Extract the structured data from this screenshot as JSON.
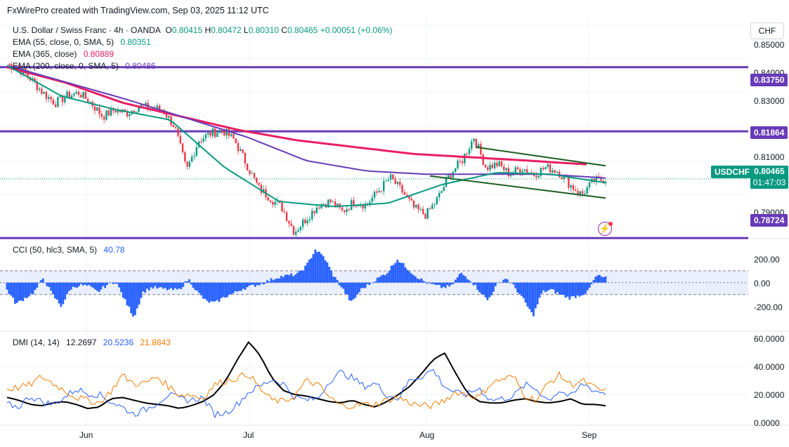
{
  "credit": "FxWirePro created with TradingView.com, Sep 03, 2025 11:12 UTC",
  "symbol_line": {
    "name": "U.S. Dollar / Swiss Franc · 4h · OANDA",
    "o_label": "O",
    "o": "0.80415",
    "h_label": "H",
    "h": "0.80472",
    "l_label": "L",
    "l": "0.80310",
    "c_label": "C",
    "c": "0.80465",
    "change": "+0.00051 (+0.06%)"
  },
  "indicators": {
    "ema55_label": "EMA (55, close, 0, SMA, 5)",
    "ema55_value": "0.80351",
    "ema365_label": "EMA (365, close)",
    "ema365_value": "0.80889",
    "ema200_label": "EMA (200, close, 0, SMA, 5)",
    "ema200_value": "0.80486"
  },
  "currency_button": "CHF",
  "price_axis": [
    "0.85000",
    "0.84000",
    "0.83000",
    "0.81000",
    "0.79000"
  ],
  "level_tags": [
    "0.83750",
    "0.81864",
    "0.78724"
  ],
  "symbol_tag": "USDCHF",
  "last_price": "0.80465",
  "countdown": "01:47:03",
  "x_axis": [
    "Jun",
    "Jul",
    "Aug",
    "Sep"
  ],
  "cci": {
    "title": "CCI (50, hlc3, SMA, 5)",
    "value": "40.78",
    "axis": [
      "200.00",
      "0.00",
      "-200.00"
    ]
  },
  "dmi": {
    "title": "DMI (14, 14)",
    "adx": "12.2697",
    "plus_di": "20.5236",
    "minus_di": "21.8843",
    "axis": [
      "60.0000",
      "40.0000",
      "20.0000",
      "0.0000"
    ]
  },
  "colors": {
    "up": "#089981",
    "down": "#f23645",
    "ema55": "#089981",
    "ema365": "#e91e63",
    "ema200": "#673ab7",
    "level": "#673ab7",
    "channel": "#1b5e20",
    "cci": "#2962ff",
    "adx": "#000000",
    "plus_di": "#2962ff",
    "minus_di": "#f57c00"
  },
  "chart_data": [
    {
      "type": "candlestick",
      "title": "U.S. Dollar / Swiss Franc · 4h · OANDA",
      "x": [
        "Jun",
        "Jul",
        "Aug",
        "Sep"
      ],
      "ylim": [
        0.7875,
        0.8525
      ],
      "horizontal_levels": [
        0.8375,
        0.81864,
        0.78724
      ],
      "close_path": [
        [
          0.8385,
          0.837,
          0.834,
          0.83,
          0.827,
          0.829,
          0.83,
          0.827,
          0.823,
          0.825
        ],
        [
          0.824,
          0.826,
          0.8255,
          0.825,
          0.82,
          0.807,
          0.816,
          0.818,
          0.819,
          0.816
        ],
        [
          0.809,
          0.802,
          0.799,
          0.796,
          0.789,
          0.793,
          0.797,
          0.798,
          0.795,
          0.798
        ],
        [
          0.797,
          0.801,
          0.805,
          0.801,
          0.796,
          0.794,
          0.799,
          0.806,
          0.81,
          0.817
        ],
        [
          0.808,
          0.809,
          0.806,
          0.808,
          0.806,
          0.808,
          0.807,
          0.803,
          0.8,
          0.804,
          0.80465
        ]
      ],
      "ema55": [
        0.838,
        0.829,
        0.825,
        0.822,
        0.808,
        0.798,
        0.7965,
        0.7975,
        0.803,
        0.8065,
        0.806,
        0.8035
      ],
      "ema365": [
        0.8375,
        0.833,
        0.827,
        0.823,
        0.819,
        0.816,
        0.814,
        0.812,
        0.811,
        0.81,
        0.8089
      ],
      "ema200": [
        0.838,
        0.833,
        0.828,
        0.8225,
        0.817,
        0.81,
        0.807,
        0.806,
        0.806,
        0.806,
        0.8049
      ],
      "channel_upper": [
        [
          0.814,
          0.8085
        ]
      ],
      "channel_lower": [
        [
          0.8055,
          0.799
        ]
      ]
    },
    {
      "type": "bar",
      "title": "CCI (50, hlc3, SMA, 5)",
      "ylim": [
        -350,
        300
      ],
      "bands": [
        100,
        0,
        -100
      ],
      "values": [
        -60,
        -180,
        -130,
        -80,
        40,
        -100,
        -200,
        -50,
        -20,
        -30,
        -80,
        -20,
        10,
        -150,
        -290,
        -80,
        -40,
        -50,
        -60,
        -60,
        30,
        -80,
        -160,
        -170,
        -120,
        -90,
        -50,
        -30,
        -10,
        20,
        50,
        60,
        70,
        140,
        280,
        210,
        60,
        -50,
        -170,
        -60,
        -10,
        40,
        90,
        200,
        130,
        60,
        10,
        -20,
        -40,
        -30,
        80,
        30,
        -60,
        -150,
        -20,
        40,
        -40,
        -150,
        -280,
        -80,
        -60,
        -100,
        -130,
        -110,
        -80,
        60,
        40
      ]
    },
    {
      "type": "line",
      "title": "DMI (14, 14)",
      "ylim": [
        0,
        60
      ],
      "series": [
        {
          "name": "ADX",
          "values": [
            18,
            16,
            13,
            12,
            14,
            15,
            13,
            10,
            11,
            17,
            18,
            16,
            14,
            13,
            12,
            10,
            12,
            15,
            20,
            30,
            45,
            58,
            48,
            32,
            23,
            20,
            19,
            17,
            15,
            14,
            16,
            13,
            11,
            15,
            20,
            26,
            35,
            45,
            50,
            35,
            21,
            15,
            14,
            14,
            16,
            17,
            15,
            14,
            15,
            17,
            13,
            13,
            12
          ]
        },
        {
          "name": "+DI",
          "values": [
            13,
            11,
            19,
            15,
            13,
            18,
            24,
            21,
            20,
            15,
            11,
            6,
            9,
            14,
            20,
            17,
            16,
            18,
            6,
            7,
            13,
            22,
            26,
            31,
            28,
            18,
            16,
            17,
            30,
            36,
            32,
            26,
            28,
            20,
            17,
            31,
            33,
            38,
            26,
            21,
            20,
            25,
            16,
            17,
            19,
            27,
            24,
            16,
            23,
            18,
            28,
            23,
            21
          ]
        },
        {
          "name": "-DI",
          "values": [
            24,
            25,
            27,
            33,
            28,
            23,
            18,
            16,
            14,
            22,
            34,
            28,
            28,
            33,
            26,
            20,
            20,
            17,
            27,
            30,
            32,
            35,
            24,
            16,
            15,
            19,
            30,
            27,
            18,
            12,
            12,
            13,
            13,
            16,
            18,
            14,
            12,
            12,
            16,
            22,
            20,
            18,
            28,
            31,
            33,
            19,
            16,
            28,
            34,
            27,
            30,
            25,
            22
          ]
        }
      ]
    }
  ]
}
